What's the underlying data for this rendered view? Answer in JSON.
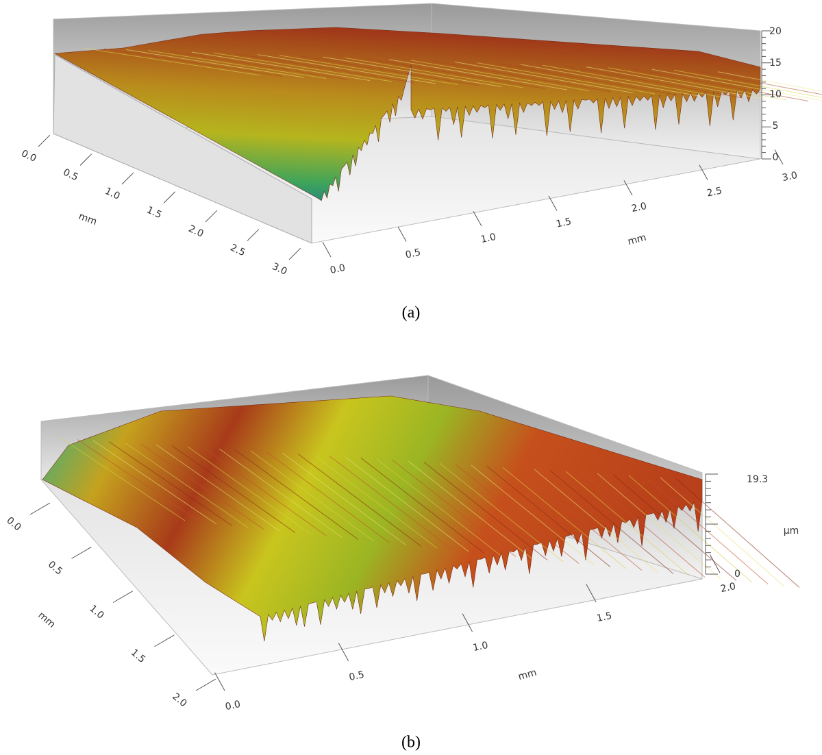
{
  "panels": [
    {
      "left_axis": {
        "ticks": [
          "0.0",
          "0.5",
          "1.0",
          "1.5",
          "2.0",
          "2.5",
          "3.0"
        ],
        "label": "mm"
      },
      "front_axis": {
        "ticks": [
          "0.0",
          "0.5",
          "1.0",
          "1.5",
          "2.0",
          "2.5",
          "3.0"
        ],
        "label": "mm"
      },
      "z_axis": {
        "ticks": [
          "0",
          "5",
          "10",
          "15",
          "20"
        ]
      },
      "caption": "(a)"
    },
    {
      "left_axis": {
        "ticks": [
          "0.0",
          "0.5",
          "1.0",
          "1.5",
          "2.0"
        ],
        "label": "mm"
      },
      "front_axis": {
        "ticks": [
          "0.0",
          "0.5",
          "1.0",
          "1.5",
          "2.0"
        ],
        "label": "mm"
      },
      "z_axis": {
        "ticks": [
          "0",
          "19.3"
        ],
        "label": "µm"
      },
      "caption": "(b)"
    }
  ]
}
